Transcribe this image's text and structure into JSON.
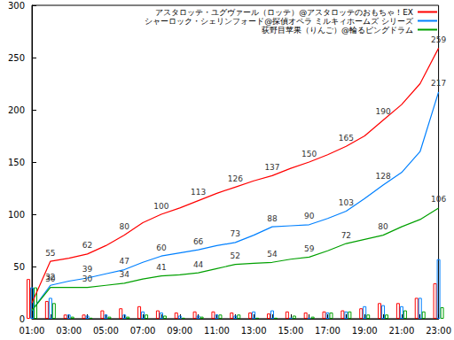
{
  "chart_data": {
    "type": "line",
    "categories": [
      "01:00",
      null,
      "03:00",
      null,
      "05:00",
      null,
      "07:00",
      null,
      "09:00",
      null,
      "11:00",
      null,
      "13:00",
      null,
      "15:00",
      null,
      "17:00",
      null,
      "19:00",
      null,
      "21:00",
      null,
      "23:00"
    ],
    "series": [
      {
        "name": "アスタロッテ・ユグヴァール（ロッテ）@アスタロッテのおもちゃ！EX",
        "color": "#ff0000",
        "type": "line",
        "values": [
          15,
          55,
          58,
          62,
          70,
          80,
          92,
          100,
          106,
          113,
          120,
          126,
          132,
          137,
          144,
          150,
          157,
          165,
          175,
          190,
          205,
          225,
          259
        ],
        "value_labels": [
          null,
          "55",
          null,
          "62",
          null,
          "80",
          null,
          "100",
          null,
          "113",
          null,
          "126",
          null,
          "137",
          null,
          "150",
          null,
          "165",
          null,
          "190",
          null,
          null,
          "259"
        ]
      },
      {
        "name": "シャーロック・シェリンフォード@探偵オペラ ミルキィホームズ シリーズ",
        "color": "#0080ff",
        "type": "line",
        "values": [
          8,
          32,
          36,
          39,
          43,
          47,
          54,
          60,
          63,
          66,
          70,
          73,
          80,
          88,
          89,
          90,
          96,
          103,
          115,
          128,
          140,
          160,
          217
        ],
        "value_labels": [
          null,
          "32",
          null,
          "39",
          null,
          "47",
          null,
          "60",
          null,
          "66",
          null,
          "73",
          null,
          "88",
          null,
          "90",
          null,
          "103",
          null,
          "128",
          null,
          null,
          "217"
        ]
      },
      {
        "name": "荻野目苹果（りんご）@輪るピングドラム",
        "color": "#00a000",
        "type": "line",
        "values": [
          8,
          30,
          30,
          30,
          32,
          34,
          38,
          41,
          42,
          44,
          48,
          52,
          53,
          54,
          57,
          59,
          65,
          72,
          76,
          80,
          88,
          95,
          106
        ],
        "value_labels": [
          null,
          "30",
          null,
          "30",
          null,
          "34",
          null,
          "41",
          null,
          "44",
          null,
          "52",
          null,
          "54",
          null,
          "59",
          null,
          "72",
          null,
          "80",
          null,
          null,
          "106"
        ]
      },
      {
        "name": "アスタロッテ・ユグヴァール（ロッテ）@アスタロッテのおもちゃ！EX",
        "color": "#ff0000",
        "type": "bar",
        "values": [
          38,
          17,
          4,
          4,
          8,
          10,
          12,
          8,
          6,
          7,
          7,
          6,
          6,
          5,
          7,
          6,
          7,
          8,
          10,
          15,
          15,
          20,
          34
        ]
      },
      {
        "name": "シャーロック・シェリンフォード@探偵オペラ ミルキィホームズ シリーズ",
        "color": "#0080ff",
        "type": "bar",
        "values": [
          30,
          20,
          4,
          3,
          4,
          4,
          7,
          6,
          3,
          3,
          4,
          3,
          7,
          8,
          1,
          1,
          6,
          7,
          12,
          13,
          12,
          20,
          57
        ]
      },
      {
        "name": "荻野目苹果（りんご）@輪るピングドラム",
        "color": "#00a000",
        "type": "bar",
        "values": [
          30,
          15,
          2,
          1,
          2,
          2,
          4,
          3,
          1,
          2,
          4,
          4,
          1,
          1,
          3,
          2,
          6,
          7,
          4,
          4,
          8,
          7,
          11
        ]
      }
    ],
    "ylim": [
      0,
      300
    ],
    "yticks": [
      0,
      50,
      100,
      150,
      200,
      250,
      300
    ],
    "grid": false,
    "legend": "top-right",
    "data_labels": true
  }
}
